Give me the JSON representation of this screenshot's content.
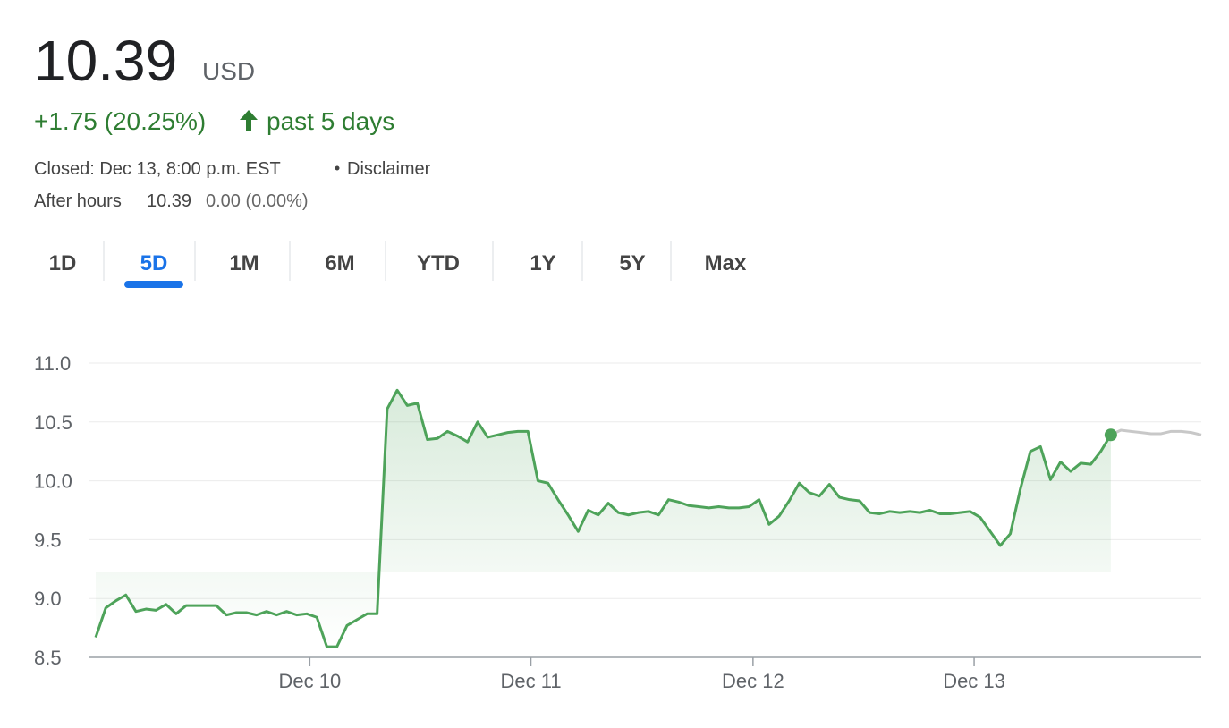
{
  "header": {
    "price": "10.39",
    "currency": "USD",
    "change": "+1.75 (20.25%)",
    "period": "past 5 days",
    "closed": "Closed: Dec 13, 8:00 p.m. EST",
    "disclaimer": "Disclaimer",
    "after_hours_label": "After hours",
    "after_hours_price": "10.39",
    "after_hours_change": "0.00 (0.00%)"
  },
  "tabs": {
    "items": [
      "1D",
      "5D",
      "1M",
      "6M",
      "YTD",
      "1Y",
      "5Y",
      "Max"
    ],
    "selected": 1
  },
  "chart_data": {
    "type": "line",
    "xlim": [
      0,
      110
    ],
    "xticks": [
      {
        "value": 21.3,
        "label": "Dec 10"
      },
      {
        "value": 43.3,
        "label": "Dec 11"
      },
      {
        "value": 65.4,
        "label": "Dec 12"
      },
      {
        "value": 87.4,
        "label": "Dec 13"
      }
    ],
    "ylim": [
      8.5,
      11.0
    ],
    "yticks": [
      {
        "value": 8.5,
        "label": "8.5"
      },
      {
        "value": 9.0,
        "label": "9.0"
      },
      9.5,
      {
        "value": 10.0,
        "label": "10.0"
      },
      10.5,
      {
        "value": 11.0,
        "label": "11.0"
      }
    ],
    "grid": true,
    "series": [
      {
        "color": "#4ea35a",
        "values": [
          8.67,
          8.92,
          8.98,
          9.03,
          8.89,
          8.91,
          8.9,
          8.95,
          8.87,
          8.94,
          8.94,
          8.94,
          8.94,
          8.86,
          8.88,
          8.88,
          8.86,
          8.89,
          8.86,
          8.89,
          8.86,
          8.87,
          8.84,
          8.59,
          8.59,
          8.77,
          8.82,
          8.87,
          8.87,
          10.61,
          10.77,
          10.64,
          10.66,
          10.35,
          10.36,
          10.42,
          10.38,
          10.33,
          10.5,
          10.37,
          10.39,
          10.41,
          10.42,
          10.42,
          10.0,
          9.98,
          9.84,
          9.71,
          9.57,
          9.75,
          9.71,
          9.81,
          9.73,
          9.71,
          9.73,
          9.74,
          9.71,
          9.84,
          9.82,
          9.79,
          9.78,
          9.77,
          9.78,
          9.77,
          9.77,
          9.78,
          9.84,
          9.63,
          9.7,
          9.83,
          9.98,
          9.9,
          9.87,
          9.97,
          9.86,
          9.84,
          9.83,
          9.73,
          9.72,
          9.74,
          9.73,
          9.74,
          9.73,
          9.75,
          9.72,
          9.72,
          9.73,
          9.74,
          9.69,
          9.57,
          9.45,
          9.55,
          9.93,
          10.25,
          10.29,
          10.01,
          10.16,
          10.08,
          10.15,
          10.14,
          10.25,
          10.39,
          null,
          null,
          null,
          null,
          null,
          null,
          null,
          null,
          null
        ]
      },
      {
        "color": "#c8c8c8",
        "values": [
          null,
          null,
          null,
          null,
          null,
          null,
          null,
          null,
          null,
          null,
          null,
          null,
          null,
          null,
          null,
          null,
          null,
          null,
          null,
          null,
          null,
          null,
          null,
          null,
          null,
          null,
          null,
          null,
          null,
          null,
          null,
          null,
          null,
          null,
          null,
          null,
          null,
          null,
          null,
          null,
          null,
          null,
          null,
          null,
          null,
          null,
          null,
          null,
          null,
          null,
          null,
          null,
          null,
          null,
          null,
          null,
          null,
          null,
          null,
          null,
          null,
          null,
          null,
          null,
          null,
          null,
          null,
          null,
          null,
          null,
          null,
          null,
          null,
          null,
          null,
          null,
          null,
          null,
          null,
          null,
          null,
          null,
          null,
          null,
          null,
          null,
          null,
          null,
          null,
          null,
          null,
          null,
          null,
          null,
          null,
          null,
          null,
          null,
          null,
          null,
          null,
          10.39,
          10.43,
          10.42,
          10.41,
          10.4,
          10.4,
          10.42,
          10.42,
          10.41,
          10.39
        ]
      }
    ]
  }
}
